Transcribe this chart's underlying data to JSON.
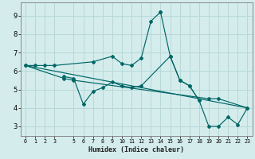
{
  "xlabel": "Humidex (Indice chaleur)",
  "bg_color": "#d4ecec",
  "grid_color": "#b8d8d8",
  "line_color": "#006666",
  "ylim": [
    2.5,
    9.7
  ],
  "xlim": [
    -0.5,
    23.5
  ],
  "yticks": [
    3,
    4,
    5,
    6,
    7,
    8,
    9
  ],
  "xticks": [
    0,
    1,
    2,
    3,
    5,
    6,
    7,
    8,
    9,
    10,
    11,
    12,
    13,
    14,
    15,
    16,
    17,
    18,
    19,
    20,
    21,
    22,
    23
  ],
  "s1x": [
    0,
    1,
    2,
    3,
    7,
    9,
    10,
    11,
    12,
    13,
    14
  ],
  "s1y": [
    6.3,
    6.3,
    6.3,
    6.3,
    6.5,
    6.8,
    6.4,
    6.3,
    6.7,
    8.7,
    9.2
  ],
  "s2x": [
    4,
    5,
    6,
    7,
    8,
    9,
    10,
    11,
    12,
    15,
    16,
    17,
    18
  ],
  "s2y": [
    5.7,
    5.6,
    4.2,
    4.9,
    5.1,
    5.4,
    5.2,
    5.1,
    5.2,
    6.8,
    5.5,
    5.2,
    4.4
  ],
  "s3x": [
    0,
    4,
    5,
    19,
    20,
    23
  ],
  "s3y": [
    6.3,
    5.6,
    5.5,
    4.5,
    4.5,
    4.0
  ],
  "s4x": [
    0,
    23
  ],
  "s4y": [
    6.3,
    4.0
  ],
  "s5x": [
    14,
    15,
    16,
    17,
    18,
    19,
    20,
    21,
    22,
    23
  ],
  "s5y": [
    9.2,
    6.8,
    5.5,
    5.2,
    4.4,
    3.0,
    3.0,
    3.5,
    3.1,
    4.0
  ]
}
